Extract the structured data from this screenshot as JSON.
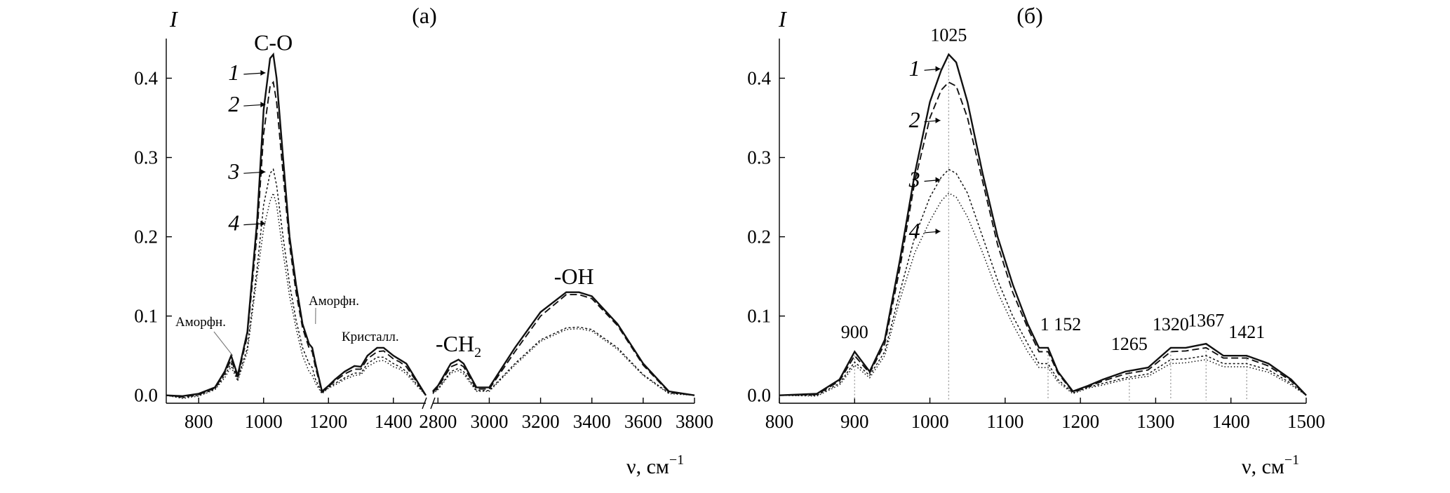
{
  "chart_data": [
    {
      "type": "line",
      "panel_label": "(а)",
      "ylabel": "I",
      "xlabel_main": "ν, см",
      "xlabel_sup": "−1",
      "ylim": [
        -0.01,
        0.45
      ],
      "x_segments": [
        [
          700,
          1500
        ],
        [
          2780,
          3800
        ]
      ],
      "x_ticks": [
        800,
        1000,
        1200,
        1400,
        2800,
        3000,
        3200,
        3400,
        3600,
        3800
      ],
      "x_tick_labels": [
        "800",
        "1000",
        "1200",
        "1400",
        "2800",
        "3000",
        "3200",
        "3400",
        "3600",
        "3800"
      ],
      "y_ticks": [
        0.0,
        0.1,
        0.2,
        0.3,
        0.4
      ],
      "y_tick_labels": [
        "0.0",
        "0.1",
        "0.2",
        "0.3",
        "0.4"
      ],
      "group_labels": [
        {
          "text": "C-O",
          "x": 1030,
          "y": 0.43
        },
        {
          "text": "-CH",
          "sub": "2",
          "x": 2880,
          "y": 0.05
        },
        {
          "text": "-OH",
          "x": 3330,
          "y": 0.135
        }
      ],
      "annotations": [
        {
          "text": "Аморфн.",
          "x": 905,
          "y": 0.05
        },
        {
          "text": "Аморфн.",
          "x": 1160,
          "y": 0.09
        },
        {
          "text": "Кристалл.",
          "x": 1360,
          "y": 0.065
        }
      ],
      "series": [
        {
          "name": "1",
          "label_x": 1010,
          "label_y": 0.405,
          "x": [
            700,
            750,
            800,
            850,
            880,
            900,
            920,
            950,
            980,
            1000,
            1020,
            1030,
            1040,
            1060,
            1080,
            1100,
            1120,
            1140,
            1150,
            1160,
            1180,
            1200,
            1220,
            1250,
            1280,
            1300,
            1320,
            1350,
            1370,
            1400,
            1420,
            1440,
            1470,
            1500,
            2780,
            2800,
            2850,
            2880,
            2900,
            2950,
            3000,
            3100,
            3200,
            3300,
            3350,
            3400,
            3500,
            3600,
            3700,
            3800
          ],
          "y": [
            0.0,
            -0.001,
            0.002,
            0.01,
            0.03,
            0.05,
            0.025,
            0.08,
            0.22,
            0.36,
            0.425,
            0.43,
            0.4,
            0.3,
            0.2,
            0.14,
            0.09,
            0.065,
            0.06,
            0.04,
            0.005,
            0.012,
            0.02,
            0.03,
            0.037,
            0.036,
            0.05,
            0.06,
            0.06,
            0.05,
            0.045,
            0.04,
            0.02,
            0.0,
            0.005,
            0.012,
            0.04,
            0.045,
            0.04,
            0.01,
            0.01,
            0.06,
            0.105,
            0.13,
            0.13,
            0.125,
            0.09,
            0.04,
            0.005,
            0.0
          ]
        },
        {
          "name": "2",
          "label_x": 1010,
          "label_y": 0.365,
          "x": [
            700,
            750,
            800,
            850,
            880,
            900,
            920,
            950,
            980,
            1000,
            1020,
            1030,
            1040,
            1060,
            1080,
            1100,
            1120,
            1140,
            1150,
            1160,
            1180,
            1200,
            1220,
            1250,
            1280,
            1300,
            1320,
            1350,
            1370,
            1400,
            1420,
            1440,
            1470,
            1500,
            2780,
            2800,
            2850,
            2880,
            2900,
            2950,
            3000,
            3100,
            3200,
            3300,
            3350,
            3400,
            3500,
            3600,
            3700,
            3800
          ],
          "y": [
            0.0,
            -0.002,
            0.001,
            0.009,
            0.028,
            0.045,
            0.022,
            0.075,
            0.205,
            0.33,
            0.39,
            0.395,
            0.37,
            0.28,
            0.19,
            0.13,
            0.085,
            0.06,
            0.055,
            0.035,
            0.004,
            0.011,
            0.018,
            0.027,
            0.033,
            0.033,
            0.046,
            0.055,
            0.056,
            0.046,
            0.042,
            0.036,
            0.018,
            0.0,
            0.004,
            0.01,
            0.036,
            0.04,
            0.036,
            0.008,
            0.008,
            0.055,
            0.1,
            0.127,
            0.127,
            0.122,
            0.088,
            0.038,
            0.004,
            0.0
          ]
        },
        {
          "name": "3",
          "label_x": 1010,
          "label_y": 0.28,
          "x": [
            700,
            750,
            800,
            850,
            880,
            900,
            920,
            950,
            980,
            1000,
            1020,
            1030,
            1040,
            1060,
            1080,
            1100,
            1120,
            1140,
            1150,
            1160,
            1180,
            1200,
            1220,
            1250,
            1280,
            1300,
            1320,
            1350,
            1370,
            1400,
            1420,
            1440,
            1470,
            1500,
            2780,
            2800,
            2850,
            2880,
            2900,
            2950,
            3000,
            3100,
            3200,
            3300,
            3350,
            3400,
            3500,
            3600,
            3700,
            3800
          ],
          "y": [
            0.0,
            -0.003,
            0.0,
            0.008,
            0.025,
            0.04,
            0.02,
            0.06,
            0.16,
            0.24,
            0.28,
            0.285,
            0.265,
            0.2,
            0.14,
            0.095,
            0.06,
            0.04,
            0.035,
            0.02,
            0.003,
            0.01,
            0.015,
            0.022,
            0.028,
            0.028,
            0.04,
            0.048,
            0.048,
            0.04,
            0.036,
            0.03,
            0.015,
            0.0,
            0.003,
            0.008,
            0.03,
            0.034,
            0.03,
            0.006,
            0.006,
            0.04,
            0.07,
            0.085,
            0.086,
            0.083,
            0.06,
            0.026,
            0.003,
            0.0
          ]
        },
        {
          "name": "4",
          "label_x": 1010,
          "label_y": 0.215,
          "x": [
            700,
            750,
            800,
            850,
            880,
            900,
            920,
            950,
            980,
            1000,
            1020,
            1030,
            1040,
            1060,
            1080,
            1100,
            1120,
            1140,
            1150,
            1160,
            1180,
            1200,
            1220,
            1250,
            1280,
            1300,
            1320,
            1350,
            1370,
            1400,
            1420,
            1440,
            1470,
            1500,
            2780,
            2800,
            2850,
            2880,
            2900,
            2950,
            3000,
            3100,
            3200,
            3300,
            3350,
            3400,
            3500,
            3600,
            3700,
            3800
          ],
          "y": [
            0.0,
            -0.004,
            -0.001,
            0.007,
            0.022,
            0.036,
            0.018,
            0.055,
            0.15,
            0.21,
            0.245,
            0.255,
            0.24,
            0.18,
            0.125,
            0.085,
            0.05,
            0.03,
            0.025,
            0.015,
            0.002,
            0.009,
            0.013,
            0.02,
            0.025,
            0.026,
            0.036,
            0.043,
            0.044,
            0.036,
            0.033,
            0.027,
            0.013,
            0.0,
            0.002,
            0.007,
            0.028,
            0.031,
            0.027,
            0.005,
            0.005,
            0.038,
            0.068,
            0.083,
            0.084,
            0.081,
            0.058,
            0.025,
            0.002,
            0.0
          ]
        }
      ]
    },
    {
      "type": "line",
      "panel_label": "(б)",
      "ylabel": "I",
      "xlabel_main": "ν, см",
      "xlabel_sup": "−1",
      "xlim": [
        800,
        1500
      ],
      "ylim": [
        -0.01,
        0.45
      ],
      "x_ticks": [
        800,
        900,
        1000,
        1100,
        1200,
        1300,
        1400,
        1500
      ],
      "x_tick_labels": [
        "800",
        "900",
        "1000",
        "1100",
        "1200",
        "1300",
        "1400",
        "1500"
      ],
      "y_ticks": [
        0.0,
        0.1,
        0.2,
        0.3,
        0.4
      ],
      "y_tick_labels": [
        "0.0",
        "0.1",
        "0.2",
        "0.3",
        "0.4"
      ],
      "peaks": [
        {
          "text": "900",
          "x": 900,
          "y_top": 0.055,
          "label_y": 0.065
        },
        {
          "text": "1025",
          "x": 1025,
          "y_top": 0.43,
          "label_y": 0.44
        },
        {
          "text": "1 152",
          "x": 1157,
          "y_top": 0.06,
          "label_y": 0.075
        },
        {
          "text": "1265",
          "x": 1265,
          "y_top": 0.03,
          "label_y": 0.05
        },
        {
          "text": "1320",
          "x": 1320,
          "y_top": 0.06,
          "label_y": 0.075
        },
        {
          "text": "1367",
          "x": 1367,
          "y_top": 0.065,
          "label_y": 0.08
        },
        {
          "text": "1421",
          "x": 1421,
          "y_top": 0.05,
          "label_y": 0.065
        }
      ],
      "series": [
        {
          "name": "1",
          "label_x": 1000,
          "label_y": 0.41,
          "x": [
            800,
            850,
            880,
            900,
            920,
            940,
            960,
            980,
            1000,
            1015,
            1025,
            1035,
            1050,
            1070,
            1090,
            1110,
            1130,
            1145,
            1157,
            1170,
            1190,
            1210,
            1230,
            1260,
            1290,
            1320,
            1340,
            1367,
            1390,
            1421,
            1450,
            1480,
            1500
          ],
          "y": [
            0.0,
            0.002,
            0.02,
            0.055,
            0.03,
            0.07,
            0.17,
            0.28,
            0.37,
            0.41,
            0.43,
            0.42,
            0.37,
            0.28,
            0.2,
            0.14,
            0.09,
            0.06,
            0.06,
            0.03,
            0.005,
            0.012,
            0.02,
            0.03,
            0.035,
            0.06,
            0.06,
            0.065,
            0.05,
            0.05,
            0.04,
            0.02,
            0.0
          ]
        },
        {
          "name": "2",
          "label_x": 1000,
          "label_y": 0.345,
          "x": [
            800,
            850,
            880,
            900,
            920,
            940,
            960,
            980,
            1000,
            1015,
            1025,
            1035,
            1050,
            1070,
            1090,
            1110,
            1130,
            1145,
            1157,
            1170,
            1190,
            1210,
            1230,
            1260,
            1290,
            1320,
            1340,
            1367,
            1390,
            1421,
            1450,
            1480,
            1500
          ],
          "y": [
            0.0,
            0.001,
            0.018,
            0.05,
            0.028,
            0.065,
            0.16,
            0.27,
            0.35,
            0.385,
            0.395,
            0.39,
            0.35,
            0.27,
            0.19,
            0.13,
            0.085,
            0.055,
            0.055,
            0.028,
            0.004,
            0.011,
            0.018,
            0.027,
            0.032,
            0.055,
            0.056,
            0.06,
            0.047,
            0.047,
            0.037,
            0.018,
            0.0
          ]
        },
        {
          "name": "3",
          "label_x": 1000,
          "label_y": 0.27,
          "x": [
            800,
            850,
            880,
            900,
            920,
            940,
            960,
            980,
            1000,
            1015,
            1025,
            1035,
            1050,
            1070,
            1090,
            1110,
            1130,
            1145,
            1157,
            1170,
            1190,
            1210,
            1230,
            1260,
            1290,
            1320,
            1340,
            1367,
            1390,
            1421,
            1450,
            1480,
            1500
          ],
          "y": [
            0.0,
            0.0,
            0.015,
            0.042,
            0.025,
            0.055,
            0.13,
            0.2,
            0.25,
            0.275,
            0.285,
            0.28,
            0.255,
            0.2,
            0.145,
            0.1,
            0.065,
            0.04,
            0.04,
            0.02,
            0.003,
            0.01,
            0.015,
            0.022,
            0.027,
            0.045,
            0.046,
            0.05,
            0.04,
            0.04,
            0.032,
            0.015,
            0.0
          ]
        },
        {
          "name": "4",
          "label_x": 1000,
          "label_y": 0.205,
          "x": [
            800,
            850,
            880,
            900,
            920,
            940,
            960,
            980,
            1000,
            1015,
            1025,
            1035,
            1050,
            1070,
            1090,
            1110,
            1130,
            1145,
            1157,
            1170,
            1190,
            1210,
            1230,
            1260,
            1290,
            1320,
            1340,
            1367,
            1390,
            1421,
            1450,
            1480,
            1500
          ],
          "y": [
            0.0,
            -0.001,
            0.013,
            0.038,
            0.022,
            0.05,
            0.12,
            0.18,
            0.22,
            0.245,
            0.255,
            0.25,
            0.225,
            0.18,
            0.13,
            0.09,
            0.055,
            0.035,
            0.035,
            0.017,
            0.002,
            0.009,
            0.013,
            0.02,
            0.024,
            0.04,
            0.041,
            0.045,
            0.036,
            0.036,
            0.029,
            0.013,
            0.0
          ]
        }
      ]
    }
  ]
}
